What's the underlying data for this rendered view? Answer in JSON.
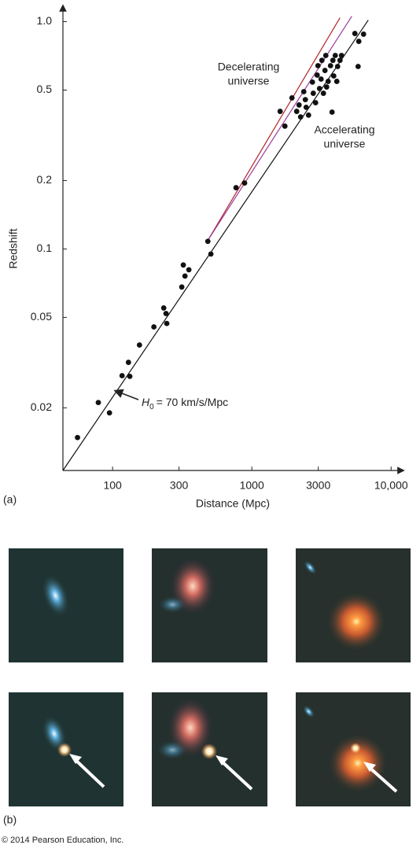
{
  "chart_data": {
    "type": "scatter",
    "x_label": "Distance (Mpc)",
    "y_label": "Redshift",
    "log_x": true,
    "log_y": true,
    "xlim": [
      44,
      11800
    ],
    "ylim": [
      0.0106,
      1.15
    ],
    "xticks": [
      100,
      300,
      1000,
      3000,
      {
        "value": 10000,
        "label": "10,000"
      }
    ],
    "yticks": [
      0.02,
      0.05,
      0.1,
      0.2,
      0.5,
      {
        "value": 1,
        "label": "1.0"
      }
    ],
    "points": {
      "color": "#111111",
      "x": [
        56,
        79,
        95,
        117,
        130,
        133,
        156,
        198,
        233,
        245,
        242,
        322,
        331,
        353,
        314,
        483,
        508,
        770,
        887,
        1596,
        1727,
        1941,
        2099,
        2183,
        2240,
        2360,
        2422,
        2455,
        2553,
        2723,
        2761,
        2869,
        2944,
        2985,
        3062,
        3141,
        3184,
        3266,
        3350,
        3396,
        3443,
        3532,
        3673,
        3767,
        3819,
        3873,
        3972,
        4074,
        4130,
        4295,
        4406,
        5495,
        5794,
        5861,
        6340
      ],
      "values": [
        0.0148,
        0.0211,
        0.019,
        0.0277,
        0.0317,
        0.0275,
        0.0378,
        0.0454,
        0.055,
        0.047,
        0.052,
        0.085,
        0.076,
        0.081,
        0.068,
        0.108,
        0.095,
        0.186,
        0.195,
        0.403,
        0.347,
        0.462,
        0.403,
        0.43,
        0.381,
        0.492,
        0.454,
        0.42,
        0.388,
        0.542,
        0.484,
        0.44,
        0.582,
        0.64,
        0.508,
        0.559,
        0.676,
        0.484,
        0.61,
        0.71,
        0.516,
        0.546,
        0.64,
        0.4,
        0.676,
        0.577,
        0.71,
        0.546,
        0.635,
        0.676,
        0.71,
        0.887,
        0.635,
        0.819,
        0.881
      ]
    },
    "lines": [
      {
        "color": "#b0262a",
        "x": [
          483,
          4295
        ],
        "values": [
          0.109,
          1.04
        ]
      },
      {
        "color": "#9a3a9e",
        "x": [
          483,
          5224
        ],
        "values": [
          0.109,
          1.057
        ]
      },
      {
        "color": "#111111",
        "x": [
          44,
          6855
        ],
        "values": [
          0.0106,
          1.016
        ]
      }
    ],
    "annotations": [
      "Decelerating",
      "universe",
      "Accelerating",
      "universe"
    ],
    "h0_label": [
      "H",
      "0",
      "= 70 km/s/Mpc"
    ]
  },
  "panel_labels": [
    "(a)",
    "(b)"
  ],
  "copyright": "© 2014 Pearson Education, Inc."
}
